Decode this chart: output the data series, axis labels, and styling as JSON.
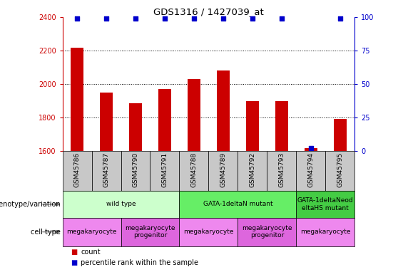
{
  "title": "GDS1316 / 1427039_at",
  "samples": [
    "GSM45786",
    "GSM45787",
    "GSM45790",
    "GSM45791",
    "GSM45788",
    "GSM45789",
    "GSM45792",
    "GSM45793",
    "GSM45794",
    "GSM45795"
  ],
  "counts": [
    2220,
    1950,
    1885,
    1970,
    2030,
    2080,
    1900,
    1900,
    1615,
    1790
  ],
  "percentile": [
    99,
    99,
    99,
    99,
    99,
    99,
    99,
    99,
    2,
    99
  ],
  "ylim_left": [
    1600,
    2400
  ],
  "ylim_right": [
    0,
    100
  ],
  "yticks_left": [
    1600,
    1800,
    2000,
    2200,
    2400
  ],
  "yticks_right": [
    0,
    25,
    50,
    75,
    100
  ],
  "bar_color": "#cc0000",
  "dot_color": "#0000cc",
  "genotype_groups": [
    {
      "label": "wild type",
      "start": 0,
      "end": 4,
      "color": "#ccffcc"
    },
    {
      "label": "GATA-1deltaN mutant",
      "start": 4,
      "end": 8,
      "color": "#66ee66"
    },
    {
      "label": "GATA-1deltaNeod\neltaHS mutant",
      "start": 8,
      "end": 10,
      "color": "#44cc44"
    }
  ],
  "cell_type_groups": [
    {
      "label": "megakaryocyte",
      "start": 0,
      "end": 2,
      "color": "#ee88ee"
    },
    {
      "label": "megakaryocyte\nprogenitor",
      "start": 2,
      "end": 4,
      "color": "#dd66dd"
    },
    {
      "label": "megakaryocyte",
      "start": 4,
      "end": 6,
      "color": "#ee88ee"
    },
    {
      "label": "megakaryocyte\nprogenitor",
      "start": 6,
      "end": 8,
      "color": "#dd66dd"
    },
    {
      "label": "megakaryocyte",
      "start": 8,
      "end": 10,
      "color": "#ee88ee"
    }
  ],
  "xtick_bg_color": "#c8c8c8",
  "label_fontsize": 7,
  "tick_fontsize": 7,
  "bar_width": 0.45
}
